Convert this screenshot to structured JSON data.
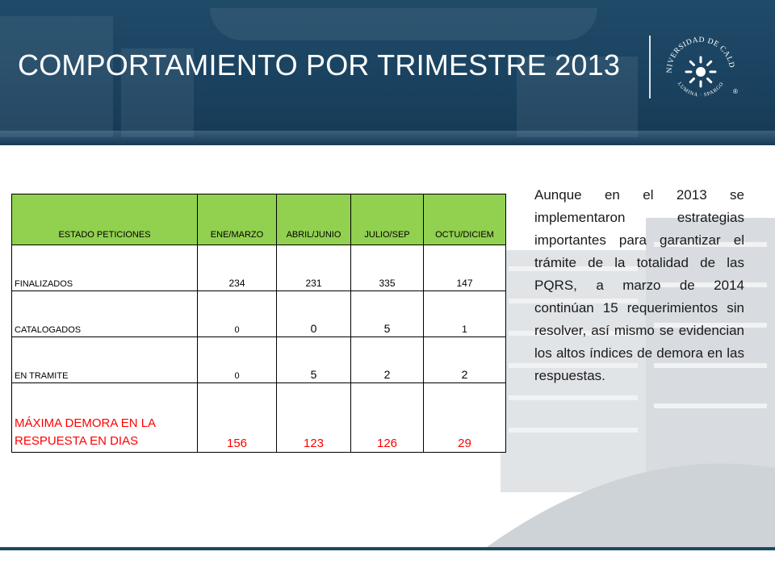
{
  "slide": {
    "title": "COMPORTAMIENTO POR TRIMESTRE 2013",
    "logo": {
      "text_top": "UNIVERSIDAD DE CALDAS",
      "text_bottom": "LUMINA · SPARGO",
      "mark": "®"
    },
    "colors": {
      "header": "#1b4462",
      "table_header": "#92d050",
      "highlight_row": "#ff0000"
    }
  },
  "table": {
    "headers": [
      "ESTADO PETICIONES",
      "ENE/MARZO",
      "ABRIL/JUNIO",
      "JULIO/SEP",
      "OCTU/DICIEM"
    ],
    "rows": [
      {
        "label": "FINALIZADOS",
        "values": [
          "234",
          "231",
          "335",
          "147"
        ]
      },
      {
        "label": "CATALOGADOS",
        "values": [
          "0",
          "0",
          "5",
          "1"
        ]
      },
      {
        "label": "EN TRAMITE",
        "values": [
          "0",
          "5",
          "2",
          "2"
        ]
      },
      {
        "label": "MÁXIMA DEMORA EN LA RESPUESTA EN DIAS",
        "values": [
          "156",
          "123",
          "126",
          "29"
        ]
      }
    ]
  },
  "paragraph": "Aunque en el 2013 se implementaron estrategias importantes para garantizar el trámite de la totalidad de las PQRS, a marzo de 2014 continúan 15 requerimientos sin resolver, así mismo se evidencian los altos índices de demora en las respuestas."
}
